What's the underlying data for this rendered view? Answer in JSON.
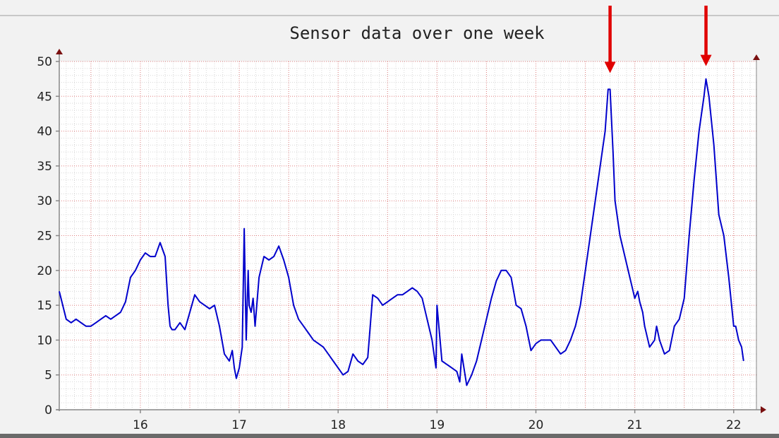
{
  "chart_data": {
    "type": "line",
    "title": "Sensor data over one week",
    "xlabel": "",
    "ylabel": "",
    "xlim": [
      15.18,
      22.23
    ],
    "ylim": [
      0,
      50
    ],
    "x_ticks": [
      16,
      17,
      18,
      19,
      20,
      21,
      22
    ],
    "x_tick_labels": [
      "16",
      "17",
      "18",
      "19",
      "20",
      "21",
      "22"
    ],
    "y_ticks": [
      0,
      5,
      10,
      15,
      20,
      25,
      30,
      35,
      40,
      45,
      50
    ],
    "y_tick_labels": [
      "0",
      "5",
      "10",
      "15",
      "20",
      "25",
      "30",
      "35",
      "40",
      "45",
      "50"
    ],
    "grid": true,
    "line_color": "#0000cc",
    "grid_color": "#e08080",
    "annotation_color": "#e00000",
    "annotations": [
      {
        "type": "arrow",
        "x": 20.75,
        "y": 46.5
      },
      {
        "type": "arrow",
        "x": 21.72,
        "y": 47.5
      }
    ],
    "series": [
      {
        "x": [
          15.18,
          15.25,
          15.3,
          15.35,
          15.4,
          15.45,
          15.5,
          15.55,
          15.6,
          15.65,
          15.7,
          15.75,
          15.8,
          15.85,
          15.9,
          15.95,
          16.0,
          16.05,
          16.1,
          16.15,
          16.2,
          16.25,
          16.28,
          16.3,
          16.32,
          16.35,
          16.4,
          16.45,
          16.5,
          16.55,
          16.6,
          16.65,
          16.7,
          16.75,
          16.8,
          16.85,
          16.9,
          16.93,
          16.95,
          16.97,
          17.0,
          17.03,
          17.05,
          17.07,
          17.09,
          17.1,
          17.12,
          17.14,
          17.16,
          17.2,
          17.25,
          17.3,
          17.35,
          17.4,
          17.45,
          17.5,
          17.55,
          17.6,
          17.65,
          17.7,
          17.75,
          17.8,
          17.85,
          17.9,
          17.95,
          18.0,
          18.05,
          18.1,
          18.15,
          18.2,
          18.25,
          18.3,
          18.35,
          18.4,
          18.45,
          18.5,
          18.55,
          18.6,
          18.65,
          18.7,
          18.75,
          18.8,
          18.85,
          18.9,
          18.95,
          18.97,
          18.99,
          19.0,
          19.05,
          19.1,
          19.15,
          19.2,
          19.23,
          19.25,
          19.3,
          19.35,
          19.4,
          19.45,
          19.5,
          19.55,
          19.6,
          19.65,
          19.7,
          19.75,
          19.8,
          19.85,
          19.9,
          19.95,
          20.0,
          20.05,
          20.1,
          20.15,
          20.2,
          20.25,
          20.3,
          20.35,
          20.4,
          20.45,
          20.5,
          20.55,
          20.6,
          20.65,
          20.7,
          20.73,
          20.75,
          20.78,
          20.8,
          20.85,
          20.9,
          20.95,
          21.0,
          21.03,
          21.05,
          21.08,
          21.1,
          21.15,
          21.2,
          21.22,
          21.25,
          21.3,
          21.35,
          21.4,
          21.45,
          21.5,
          21.55,
          21.6,
          21.65,
          21.7,
          21.72,
          21.75,
          21.8,
          21.85,
          21.9,
          21.95,
          22.0,
          22.02,
          22.05,
          22.08,
          22.1
        ],
        "y": [
          17,
          13,
          12.5,
          13,
          12.5,
          12,
          12,
          12.5,
          13,
          13.5,
          13,
          13.5,
          14,
          15.5,
          19,
          20,
          21.5,
          22.5,
          22,
          22,
          24,
          22,
          15,
          12,
          11.5,
          11.5,
          12.5,
          11.5,
          14,
          16.5,
          15.5,
          15,
          14.5,
          15,
          12,
          8,
          7,
          8.5,
          6,
          4.5,
          6,
          9,
          26,
          10,
          20,
          15,
          14,
          16,
          12,
          19,
          22,
          21.5,
          22,
          23.5,
          21.5,
          19,
          15,
          13,
          12,
          11,
          10,
          9.5,
          9,
          8,
          7,
          6,
          5,
          5.5,
          8,
          7,
          6.5,
          7.5,
          16.5,
          16,
          15,
          15.5,
          16,
          16.5,
          16.5,
          17,
          17.5,
          17,
          16,
          13,
          10,
          8,
          6,
          15,
          7,
          6.5,
          6,
          5.5,
          4,
          8,
          3.5,
          5,
          7,
          10,
          13,
          16,
          18.5,
          20,
          20,
          19,
          15,
          14.5,
          12,
          8.5,
          9.5,
          10,
          10,
          10,
          9,
          8,
          8.5,
          10,
          12,
          15,
          20,
          25,
          30,
          35,
          40,
          46,
          46,
          37,
          30,
          25,
          22,
          19,
          16,
          17,
          15.5,
          14,
          12,
          9,
          10,
          12,
          10,
          8,
          8.5,
          12,
          13,
          16,
          25,
          33,
          40,
          45,
          47.5,
          45,
          38,
          28,
          25,
          19,
          12,
          12,
          10,
          9,
          7
        ]
      }
    ]
  }
}
